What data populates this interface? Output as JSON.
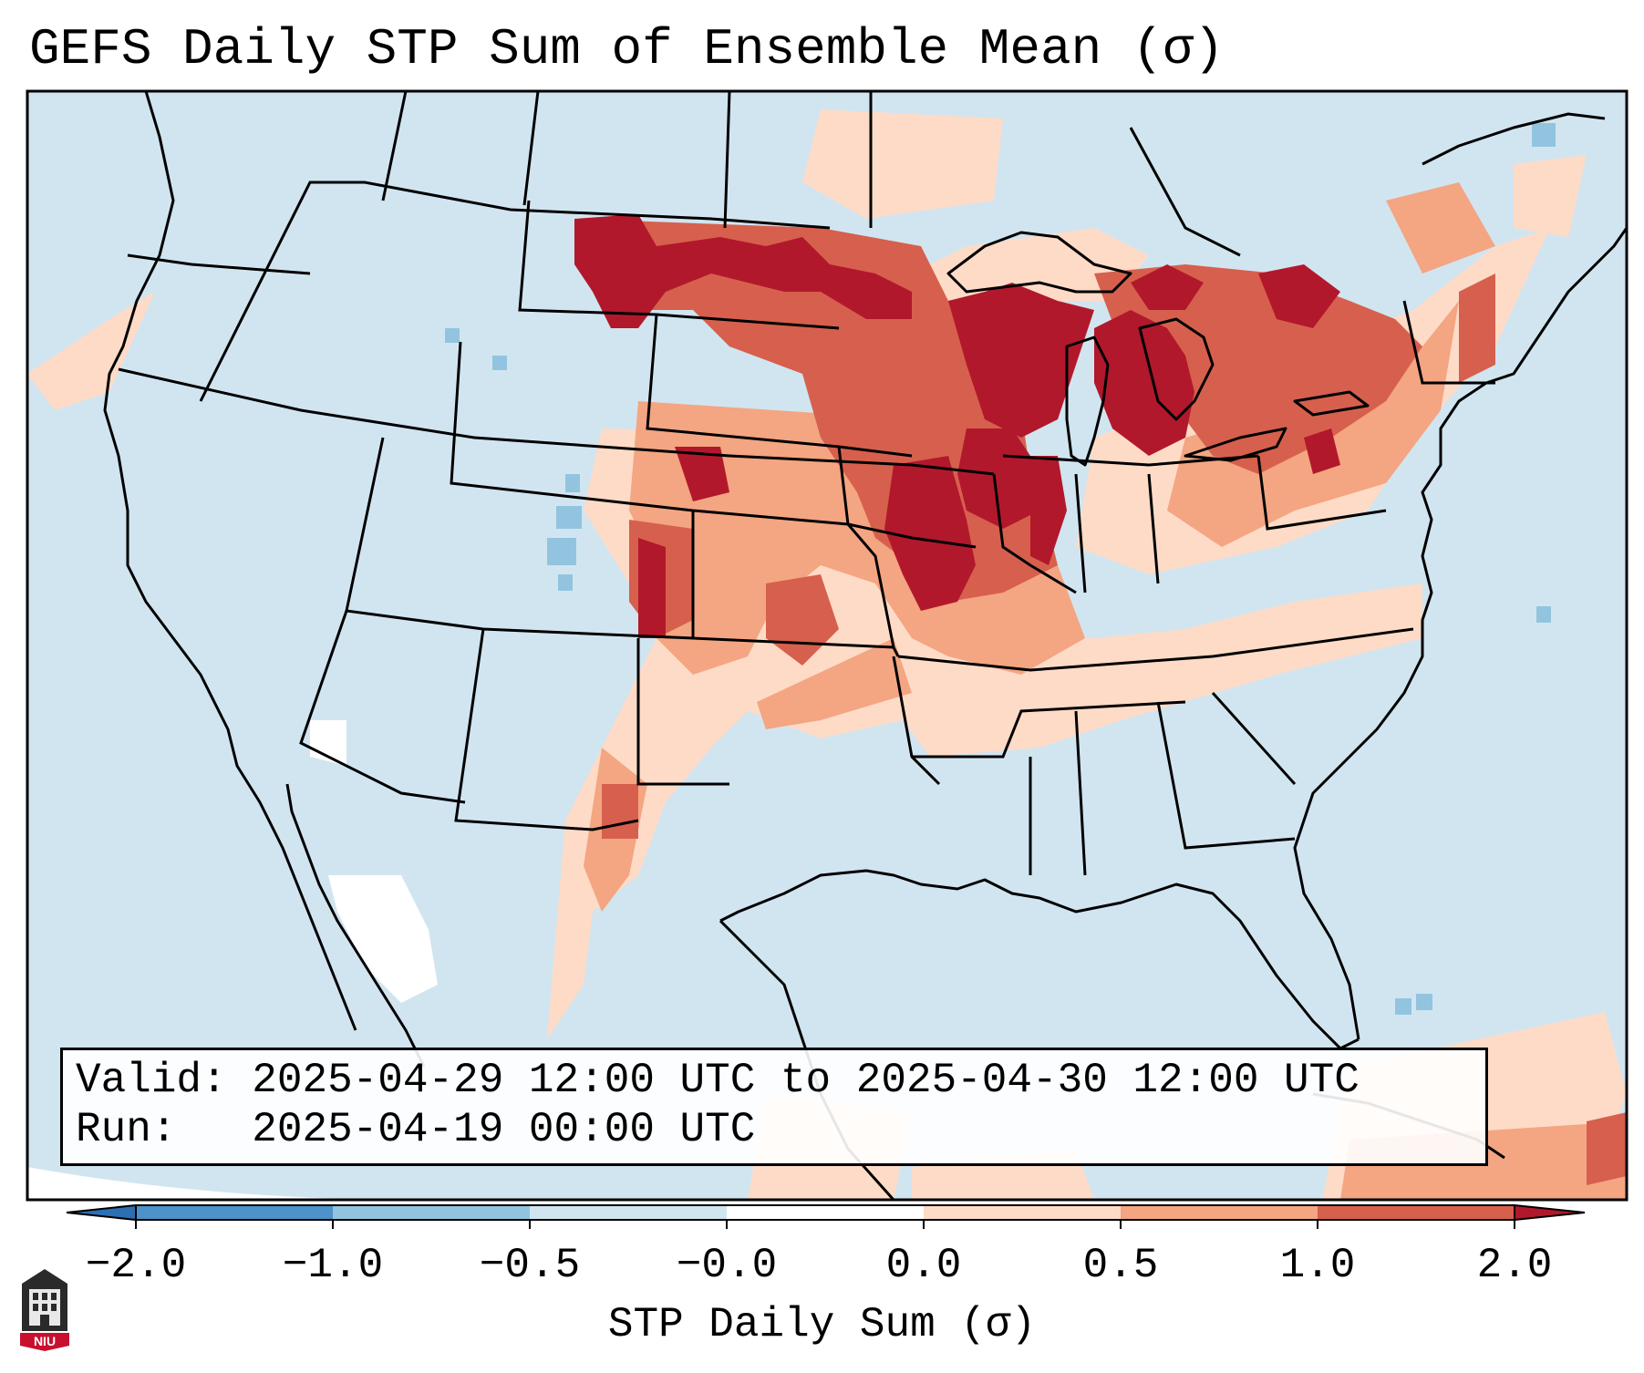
{
  "title": "GEFS Daily STP Sum of Ensemble Mean (σ)",
  "info": {
    "valid_label": "Valid:",
    "valid_value": "2025-04-29 12:00 UTC to 2025-04-30 12:00 UTC",
    "run_label": "Run:",
    "run_value": "2025-04-19 00:00 UTC"
  },
  "colorbar": {
    "label": "STP Daily Sum (σ)",
    "ticks": [
      "−2.0",
      "−1.0",
      "−0.5",
      "−0.0",
      "0.0",
      "0.5",
      "1.0",
      "2.0"
    ],
    "colors": {
      "under": "#2c6fb3",
      "bin_-2_-1": "#4d92c8",
      "bin_-1_-0.5": "#92c4df",
      "bin_-0.5_0": "#d1e5f0",
      "bin_0_0.5": "#fddbc7",
      "bin_0.5_1": "#f4a582",
      "bin_1_2": "#d6604d",
      "over": "#b2182b"
    }
  },
  "map": {
    "background_color": "#d1e5f0",
    "low_sigma_color": "#ffffff",
    "high_sigma_regions": [
      "Northern Plains",
      "Upper Midwest",
      "Michigan",
      "Great Lakes",
      "Southern Plains"
    ]
  },
  "logo_text": "NIU"
}
